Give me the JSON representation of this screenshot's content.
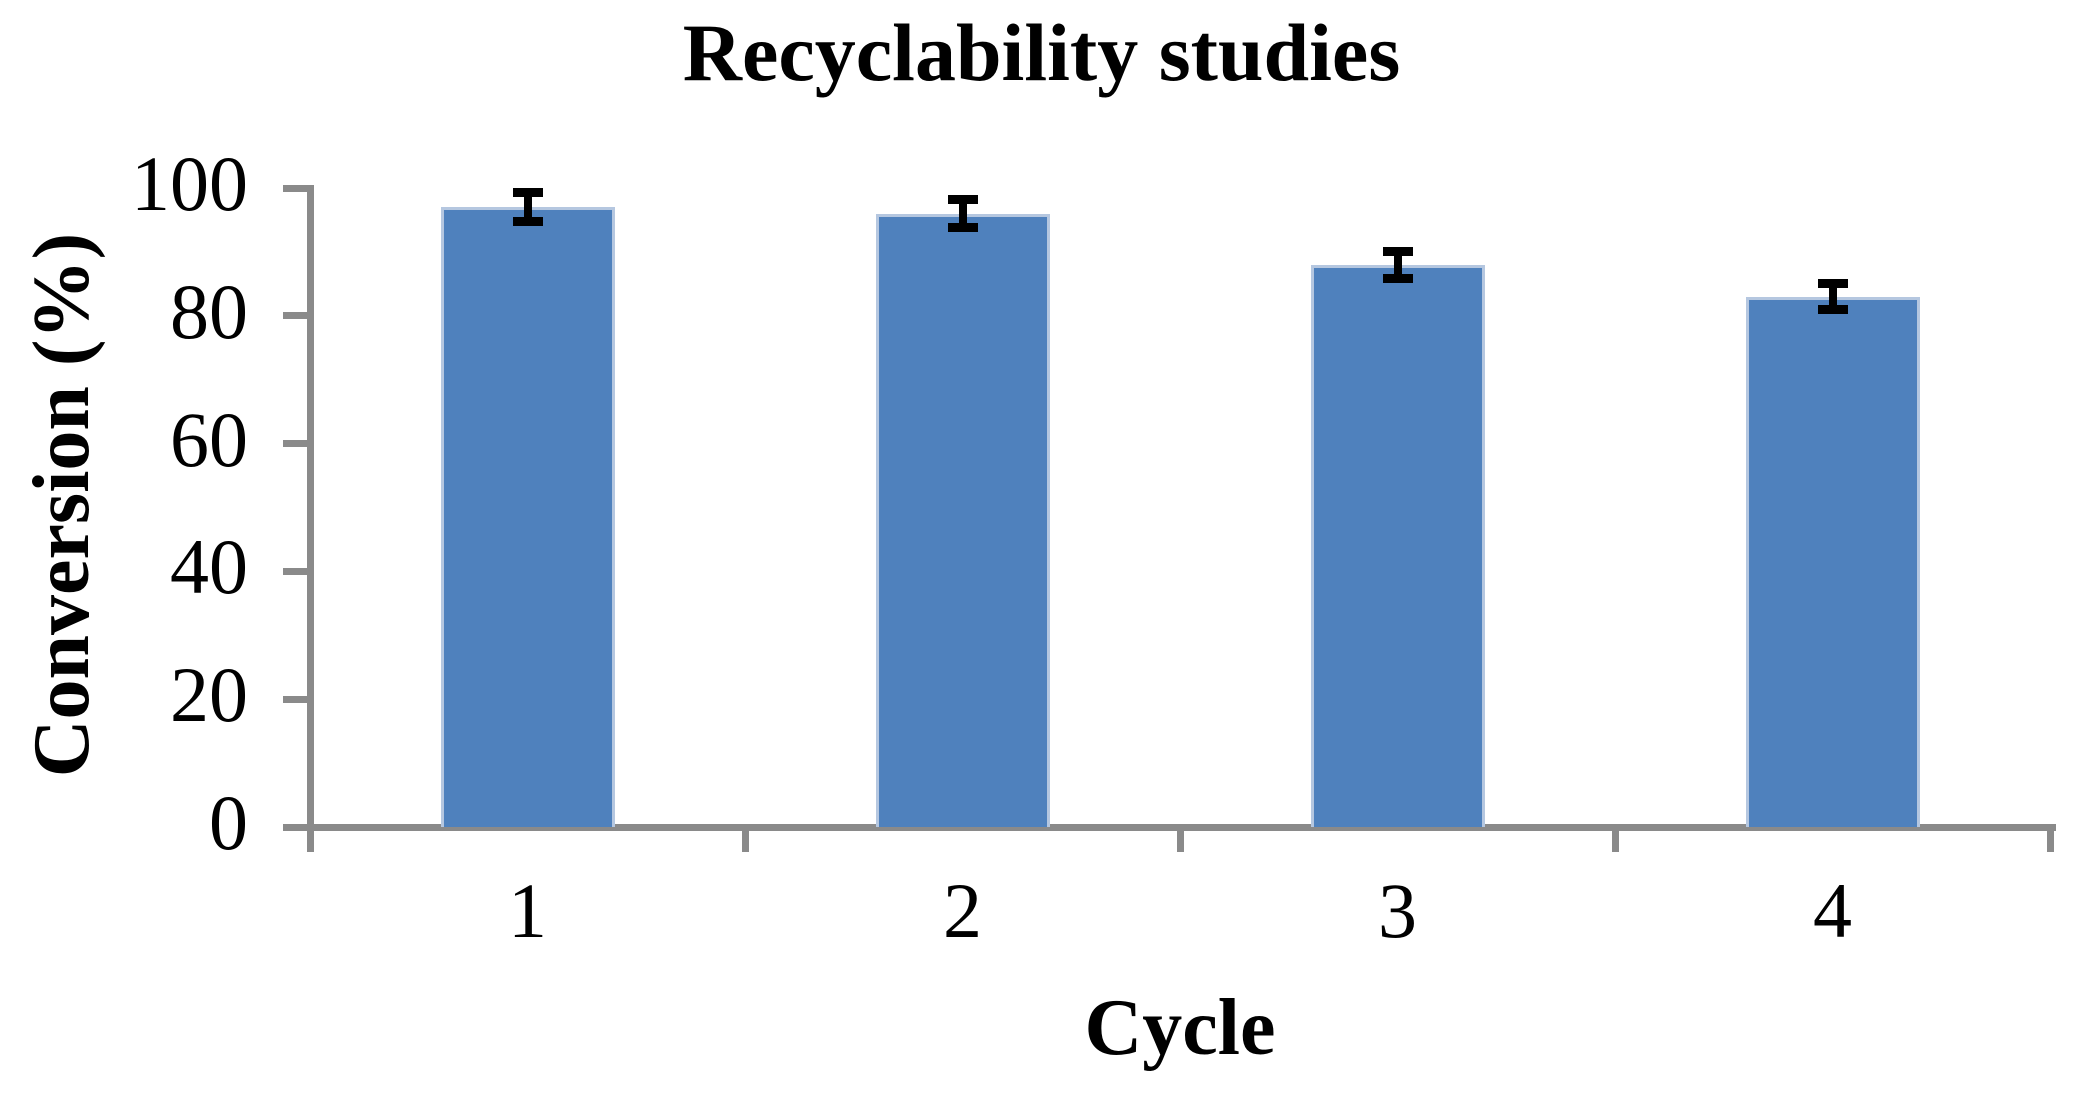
{
  "chart_data": {
    "type": "bar",
    "title": "Recyclability studies",
    "xlabel": "Cycle",
    "ylabel": "Conversion (%)",
    "categories": [
      "1",
      "2",
      "3",
      "4"
    ],
    "values": [
      97,
      96,
      88,
      83
    ],
    "errors": [
      2.3,
      2.2,
      2.1,
      2.0
    ],
    "ylim": [
      0,
      100
    ],
    "yticks": [
      0,
      20,
      40,
      60,
      80,
      100
    ],
    "grid": false,
    "legend_position": "none",
    "colors": {
      "bar_fill": "#4F81BD",
      "bar_border": "#b5c7e0",
      "axis": "#8a8a8a",
      "error_bar": "#000000",
      "text": "#000000",
      "background": "#ffffff"
    }
  }
}
